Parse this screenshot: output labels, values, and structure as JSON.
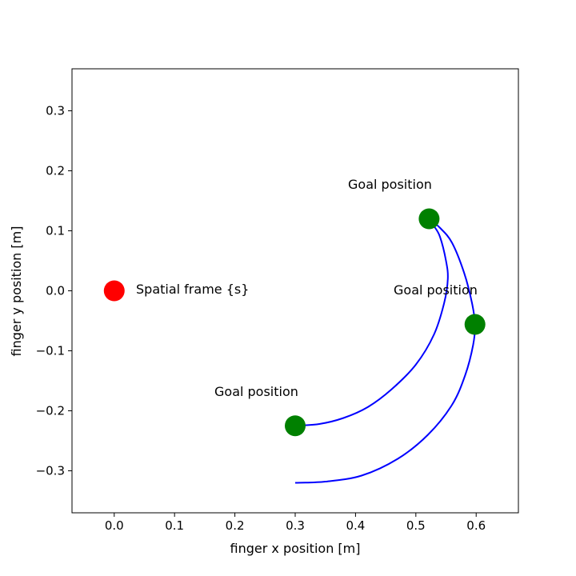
{
  "chart_data": {
    "type": "scatter",
    "title": "",
    "xlabel": "finger x position [m]",
    "ylabel": "finger y position [m]",
    "xlim": [
      -0.07,
      0.67
    ],
    "ylim": [
      -0.37,
      0.37
    ],
    "xticks": [
      0.0,
      0.1,
      0.2,
      0.3,
      0.4,
      0.5,
      0.6
    ],
    "xtick_labels": [
      "0.0",
      "0.1",
      "0.2",
      "0.3",
      "0.4",
      "0.5",
      "0.6"
    ],
    "yticks": [
      0.3,
      0.2,
      0.1,
      0.0,
      -0.1,
      -0.2,
      -0.3
    ],
    "ytick_labels": [
      "0.3",
      "0.2",
      "0.1",
      "0.0",
      "−0.1",
      "−0.2",
      "−0.3"
    ],
    "grid": false,
    "origin_point": {
      "x": 0.0,
      "y": 0.0,
      "color": "#ff0000",
      "label": "Spatial frame {s}"
    },
    "goal_points": [
      {
        "x": 0.3,
        "y": -0.225,
        "color": "#008000",
        "label": "Goal position"
      },
      {
        "x": 0.522,
        "y": 0.12,
        "color": "#008000",
        "label": "Goal position"
      },
      {
        "x": 0.598,
        "y": -0.056,
        "color": "#008000",
        "label": "Goal position"
      }
    ],
    "trajectories": [
      {
        "color": "#0000ff",
        "points": [
          [
            0.3,
            -0.225
          ],
          [
            0.34,
            -0.222
          ],
          [
            0.38,
            -0.212
          ],
          [
            0.42,
            -0.194
          ],
          [
            0.46,
            -0.164
          ],
          [
            0.5,
            -0.123
          ],
          [
            0.53,
            -0.073
          ],
          [
            0.547,
            -0.02
          ],
          [
            0.553,
            0.02
          ],
          [
            0.55,
            0.05
          ],
          [
            0.54,
            0.09
          ],
          [
            0.53,
            0.108
          ],
          [
            0.522,
            0.12
          ]
        ]
      },
      {
        "color": "#0000ff",
        "points": [
          [
            0.522,
            0.12
          ],
          [
            0.54,
            0.105
          ],
          [
            0.56,
            0.08
          ],
          [
            0.58,
            0.03
          ],
          [
            0.593,
            -0.02
          ],
          [
            0.598,
            -0.056
          ],
          [
            0.595,
            -0.09
          ],
          [
            0.582,
            -0.14
          ],
          [
            0.56,
            -0.19
          ],
          [
            0.52,
            -0.24
          ],
          [
            0.47,
            -0.28
          ],
          [
            0.41,
            -0.308
          ],
          [
            0.35,
            -0.318
          ],
          [
            0.3,
            -0.32
          ]
        ]
      }
    ]
  }
}
